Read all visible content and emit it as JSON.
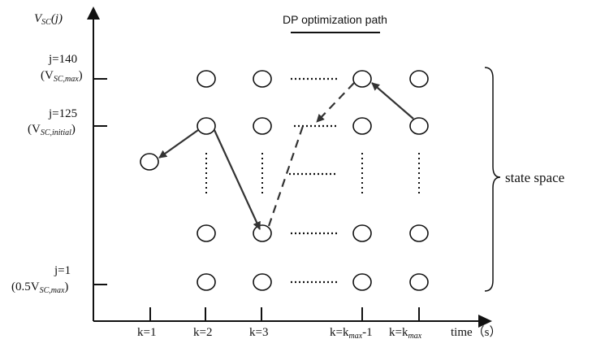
{
  "diagram": {
    "title": {
      "prefix": "DP ",
      "underlined": "optimization",
      "suffix": " path"
    },
    "y_axis_label": {
      "main": "V",
      "sub": "SC",
      "arg": "(j)"
    },
    "x_axis_label": "time（s）",
    "side_brace_label": "state space",
    "y_ticks": [
      {
        "line1": "j=140",
        "line2_prefix": "(V",
        "line2_sub": "SC,max",
        "line2_suffix": ")"
      },
      {
        "line1": "j=125",
        "line2_prefix": "(V",
        "line2_sub": "SC,initial",
        "line2_suffix": ")"
      },
      {
        "line1": "j=1",
        "line2_prefix": "(0.5V",
        "line2_sub": "SC,max",
        "line2_suffix": ")"
      }
    ],
    "x_ticks": [
      {
        "pre": "k=1"
      },
      {
        "pre": "k=2"
      },
      {
        "pre": "k=3"
      },
      {
        "pre": "k=k",
        "sub": "max",
        "post": "-1"
      },
      {
        "pre": "k=k",
        "sub": "max",
        "post": ""
      }
    ]
  }
}
